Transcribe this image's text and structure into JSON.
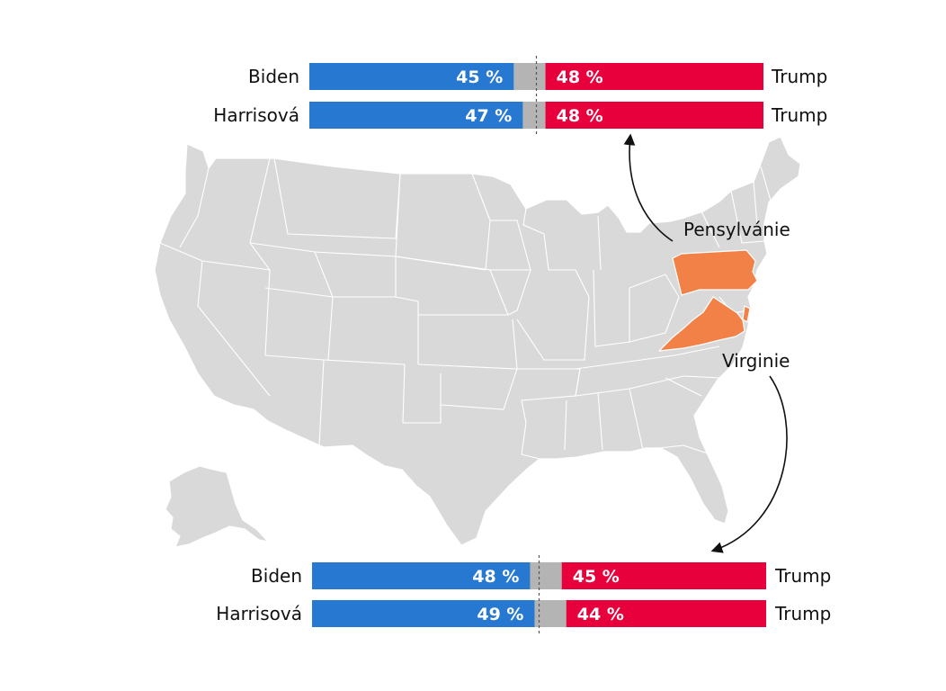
{
  "colors": {
    "dem": "#2678d0",
    "rep": "#e8003c",
    "undecided": "#b4b4b4",
    "map": "#d9d9d9",
    "highlight": "#f28148"
  },
  "map": {
    "highlighted_states": [
      {
        "label": "Pensylvánie"
      },
      {
        "label": "Virginie"
      }
    ]
  },
  "chart_data": [
    {
      "type": "bar",
      "stacked": true,
      "orientation": "horizontal",
      "state": "Pensylvánie",
      "rows": [
        {
          "dem_label": "Biden",
          "dem_value": 45,
          "dem_text": "45 %",
          "rep_label": "Trump",
          "rep_value": 48,
          "rep_text": "48 %"
        },
        {
          "dem_label": "Harrisová",
          "dem_value": 47,
          "dem_text": "47 %",
          "rep_label": "Trump",
          "rep_value": 48,
          "rep_text": "48 %"
        }
      ],
      "xlim": [
        0,
        100
      ],
      "midline": 50
    },
    {
      "type": "bar",
      "stacked": true,
      "orientation": "horizontal",
      "state": "Virginie",
      "rows": [
        {
          "dem_label": "Biden",
          "dem_value": 48,
          "dem_text": "48 %",
          "rep_label": "Trump",
          "rep_value": 45,
          "rep_text": "45 %"
        },
        {
          "dem_label": "Harrisová",
          "dem_value": 49,
          "dem_text": "49 %",
          "rep_label": "Trump",
          "rep_value": 44,
          "rep_text": "44 %"
        }
      ],
      "xlim": [
        0,
        100
      ],
      "midline": 50
    }
  ]
}
